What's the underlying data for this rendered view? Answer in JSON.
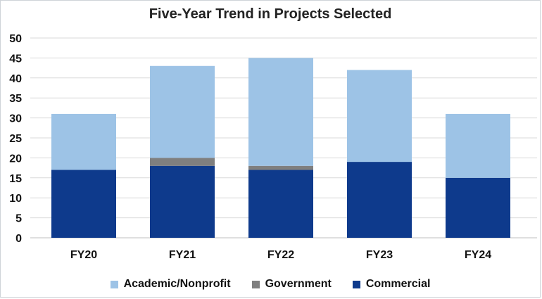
{
  "chart_data": {
    "type": "bar",
    "stacked": true,
    "title": "Five-Year Trend in Projects Selected",
    "xlabel": "",
    "ylabel": "",
    "categories": [
      "FY20",
      "FY21",
      "FY22",
      "FY23",
      "FY24"
    ],
    "ylim": [
      0,
      50
    ],
    "yticks": [
      0,
      5,
      10,
      15,
      20,
      25,
      30,
      35,
      40,
      45,
      50
    ],
    "grid": true,
    "legend_position": "bottom",
    "series": [
      {
        "name": "Commercial",
        "color": "#0e3a8c",
        "values": [
          17,
          18,
          17,
          19,
          15
        ]
      },
      {
        "name": "Government",
        "color": "#7f7f7f",
        "values": [
          0,
          2,
          1,
          0,
          0
        ]
      },
      {
        "name": "Academic/Nonprofit",
        "color": "#9dc3e6",
        "values": [
          14,
          23,
          27,
          23,
          16
        ]
      }
    ],
    "legend_order": [
      "Academic/Nonprofit",
      "Government",
      "Commercial"
    ]
  }
}
